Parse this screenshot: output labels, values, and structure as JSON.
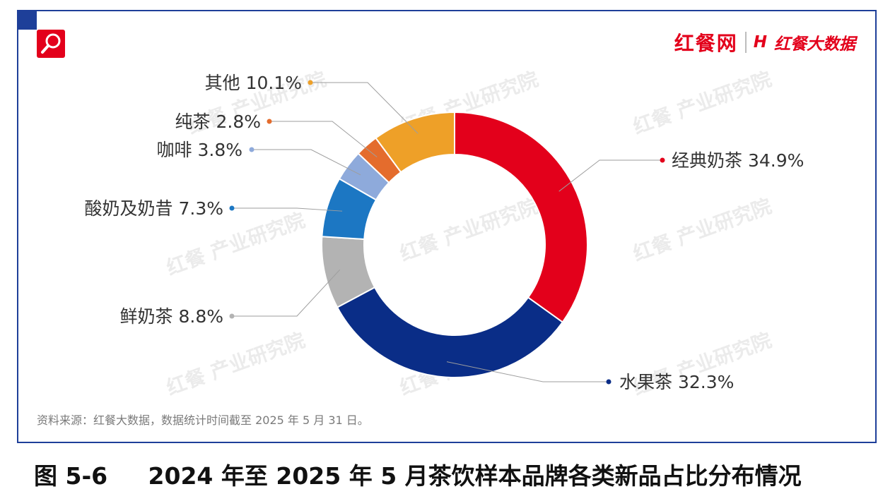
{
  "brand": {
    "name": "红餐网",
    "sub_name": "红餐大数据",
    "logo_mark": "H"
  },
  "watermark": {
    "text": "红餐 产业研究院"
  },
  "chart_data": {
    "type": "pie",
    "style": "donut",
    "unit": "%",
    "slices": [
      {
        "label": "经典奶茶",
        "value": 34.9,
        "display": "34.9%",
        "color": "#e3001b"
      },
      {
        "label": "水果茶",
        "value": 32.3,
        "display": "32.3%",
        "color": "#0a2d87"
      },
      {
        "label": "鲜奶茶",
        "value": 8.8,
        "display": "8.8%",
        "color": "#b3b3b3"
      },
      {
        "label": "酸奶及奶昔",
        "value": 7.3,
        "display": "7.3%",
        "color": "#1c77c3"
      },
      {
        "label": "咖啡",
        "value": 3.8,
        "display": "3.8%",
        "color": "#8eaadb"
      },
      {
        "label": "纯茶",
        "value": 2.8,
        "display": "2.8%",
        "color": "#e46c2d"
      },
      {
        "label": "其他",
        "value": 10.1,
        "display": "10.1%",
        "color": "#eea028"
      }
    ]
  },
  "source": "资料来源：红餐大数据，数据统计时间截至 2025 年 5 月 31 日。",
  "caption": "图 5-6     2024 年至 2025 年 5 月茶饮样本品牌各类新品占比分布情况"
}
